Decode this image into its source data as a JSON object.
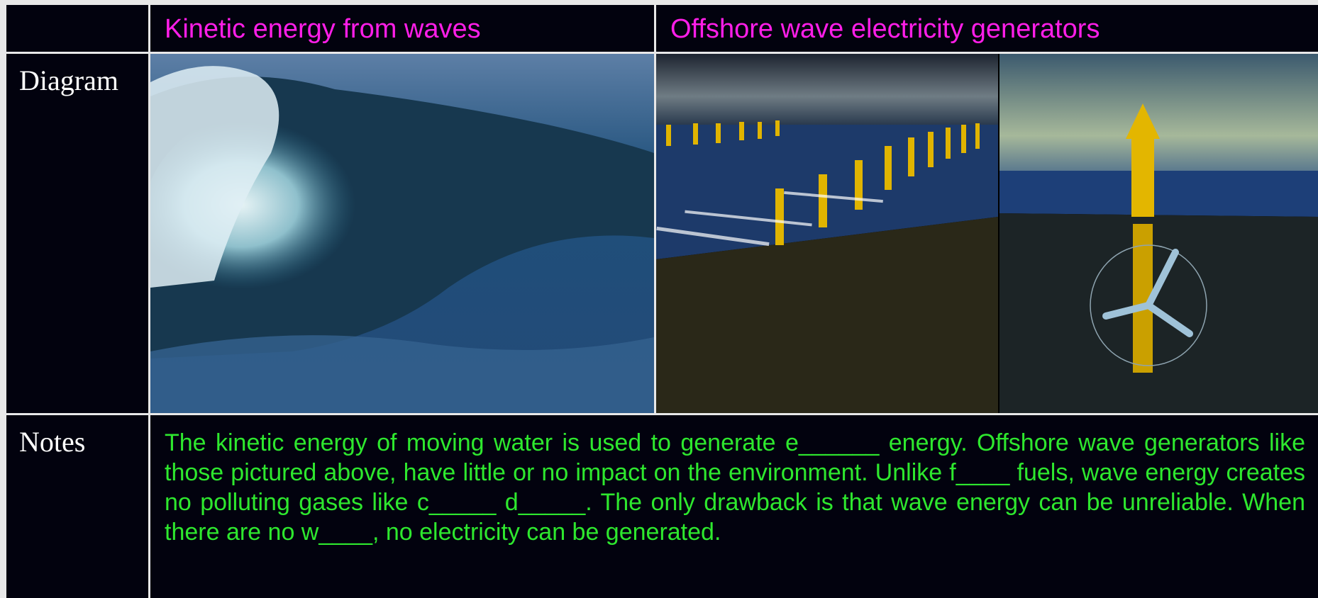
{
  "header": {
    "left": "Kinetic energy from waves",
    "right": "Offshore wave electricity generators"
  },
  "rows": [
    {
      "label": "Diagram"
    },
    {
      "label": "Notes",
      "text": "The kinetic energy of moving water is used to generate e______ energy. Offshore wave generators like those pictured above, have little or no impact on the environment. Unlike f____ fuels, wave energy creates no polluting gases like c_____ d_____. The only drawback is that wave energy can be unreliable. When there are no w____, no electricity can be generated."
    }
  ]
}
